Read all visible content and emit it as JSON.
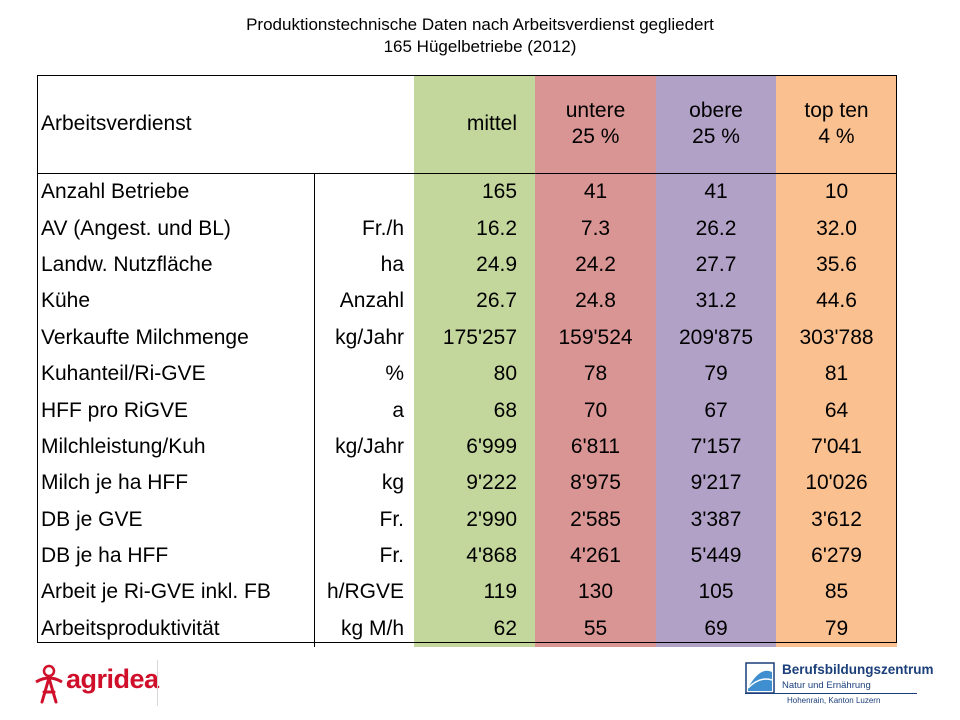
{
  "title": {
    "line1": "Produktionstechnische Daten nach Arbeitsverdienst gegliedert",
    "line2": "165 Hügelbetriebe (2012)"
  },
  "table": {
    "header": {
      "label": "Arbeitsverdienst",
      "mittel": "mittel",
      "untere_1": "untere",
      "untere_2": "25 %",
      "obere_1": "obere",
      "obere_2": "25 %",
      "top_1": "top ten",
      "top_2": "4 %"
    },
    "column_colors": {
      "mittel": "#c3d69b",
      "untere": "#d99594",
      "obere": "#b2a1c7",
      "top": "#fac090"
    },
    "rows": [
      {
        "label": "Anzahl Betriebe",
        "unit": "",
        "mittel": "165",
        "untere": "41",
        "obere": "41",
        "top": "10"
      },
      {
        "label": "AV (Angest. und BL)",
        "unit": "Fr./h",
        "mittel": "16.2",
        "untere": "7.3",
        "obere": "26.2",
        "top": "32.0"
      },
      {
        "label": "Landw. Nutzfläche",
        "unit": "ha",
        "mittel": "24.9",
        "untere": "24.2",
        "obere": "27.7",
        "top": "35.6"
      },
      {
        "label": "Kühe",
        "unit": "Anzahl",
        "mittel": "26.7",
        "untere": "24.8",
        "obere": "31.2",
        "top": "44.6"
      },
      {
        "label": "Verkaufte Milchmenge",
        "unit": "kg/Jahr",
        "mittel": "175'257",
        "untere": "159'524",
        "obere": "209'875",
        "top": "303'788"
      },
      {
        "label": "Kuhanteil/Ri-GVE",
        "unit": "%",
        "mittel": "80",
        "untere": "78",
        "obere": "79",
        "top": "81"
      },
      {
        "label": "HFF pro RiGVE",
        "unit": "a",
        "mittel": "68",
        "untere": "70",
        "obere": "67",
        "top": "64"
      },
      {
        "label": "Milchleistung/Kuh",
        "unit": "kg/Jahr",
        "mittel": "6'999",
        "untere": "6'811",
        "obere": "7'157",
        "top": "7'041"
      },
      {
        "label": "Milch je ha HFF",
        "unit": "kg",
        "mittel": "9'222",
        "untere": "8'975",
        "obere": "9'217",
        "top": "10'026"
      },
      {
        "label": "DB je GVE",
        "unit": "Fr.",
        "mittel": "2'990",
        "untere": "2'585",
        "obere": "3'387",
        "top": "3'612"
      },
      {
        "label": "DB je ha HFF",
        "unit": "Fr.",
        "mittel": "4'868",
        "untere": "4'261",
        "obere": "5'449",
        "top": "6'279"
      },
      {
        "label": "Arbeit je Ri-GVE inkl. FB",
        "unit": "h/RGVE",
        "mittel": "119",
        "untere": "130",
        "obere": "105",
        "top": "85"
      },
      {
        "label": "Arbeitsproduktivität",
        "unit": "kg M/h",
        "mittel": "62",
        "untere": "55",
        "obere": "69",
        "top": "79"
      }
    ]
  },
  "footer": {
    "agridea_logo_text": "agridea",
    "bbz_name": "Berufsbildungszentrum",
    "bbz_sub": "Natur und Ernährung",
    "bbz_location": "Hohenrain, Kanton Luzern"
  }
}
